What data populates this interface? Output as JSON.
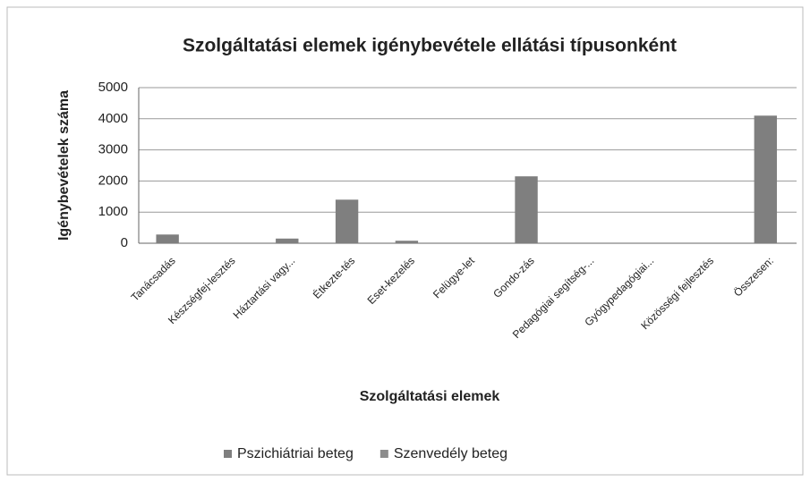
{
  "chart_data": {
    "type": "bar",
    "title": "Szolgáltatási elemek igénybevétele ellátási típusonként",
    "x_label": "Szolgáltatási elemek",
    "y_label": "Igénybevételek száma",
    "categories": [
      "Tanácsadás",
      "Készségfej-lesztés",
      "Háztartási vagy...",
      "Étkezte-tés",
      "Eset-kezelés",
      "Felügye-let",
      "Gondo-zás",
      "Pedagógiai segítség-...",
      "Gyógypedagógiai...",
      "Közösségi fejlesztés",
      "Összesen:"
    ],
    "series": [
      {
        "name": "Pszichiátriai beteg",
        "color": "#7f7f7f",
        "values": [
          280,
          0,
          150,
          1400,
          80,
          0,
          2150,
          0,
          0,
          0,
          4100
        ]
      },
      {
        "name": "Szenvedély beteg",
        "color": "#8c8c8c",
        "values": [
          0,
          0,
          0,
          0,
          0,
          0,
          0,
          0,
          0,
          0,
          0
        ]
      }
    ],
    "ylim": [
      0,
      5000
    ],
    "yticks": [
      0,
      1000,
      2000,
      3000,
      4000,
      5000
    ],
    "grid": true,
    "legend": "bottom"
  }
}
